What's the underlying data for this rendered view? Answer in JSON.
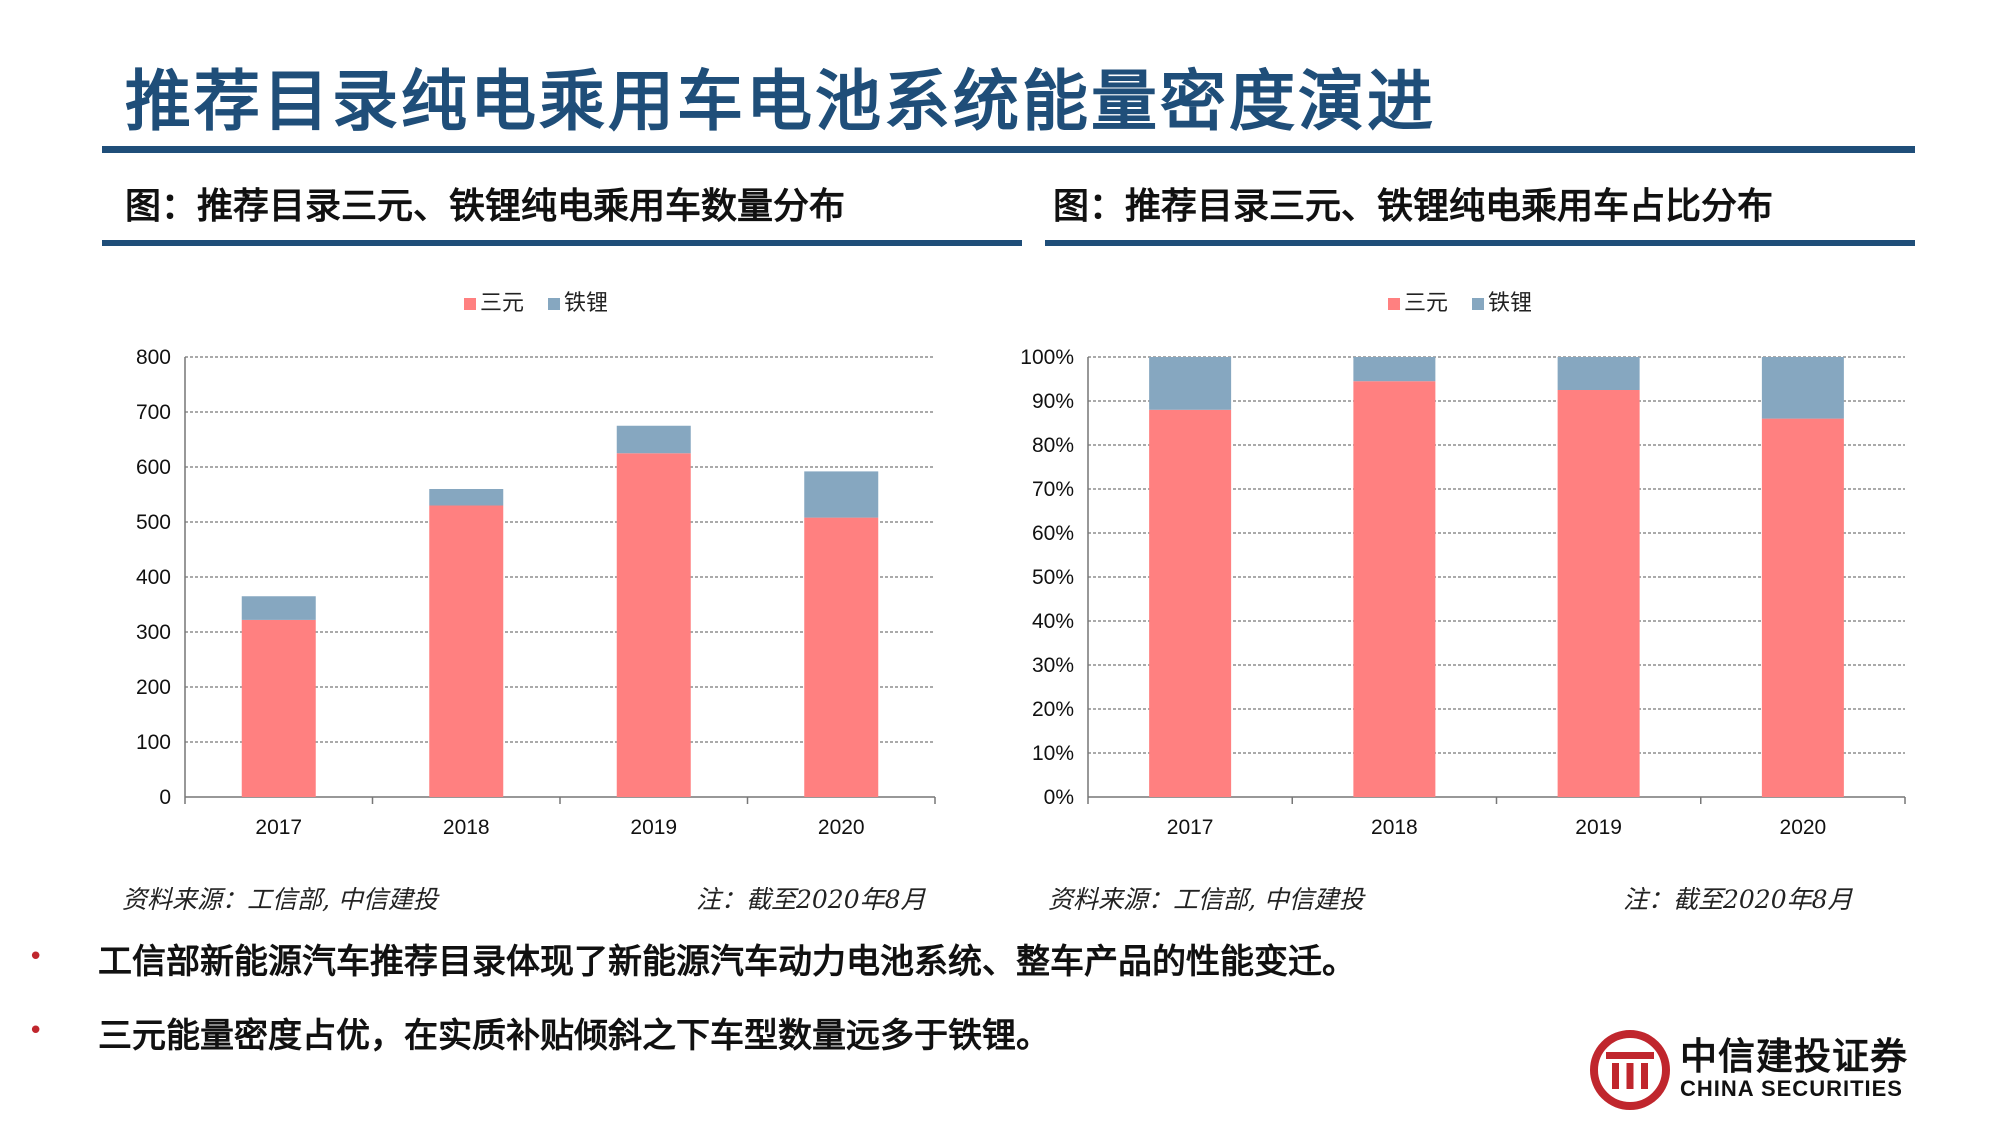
{
  "page": {
    "title": "推荐目录纯电乘用车电池系统能量密度演进"
  },
  "figures": [
    {
      "title": "图：推荐目录三元、铁锂纯电乘用车数量分布",
      "source": "资料来源：工信部, 中信建投",
      "note": "注：截至2020年8月"
    },
    {
      "title": "图：推荐目录三元、铁锂纯电乘用车占比分布",
      "source": "资料来源：工信部, 中信建投",
      "note": "注：截至2020年8月"
    }
  ],
  "chart_data": [
    {
      "type": "bar",
      "stacked": true,
      "categories": [
        "2017",
        "2018",
        "2019",
        "2020"
      ],
      "series": [
        {
          "name": "三元",
          "values": [
            322,
            530,
            625,
            508
          ],
          "color": "#ff8080"
        },
        {
          "name": "铁锂",
          "values": [
            43,
            30,
            50,
            84
          ],
          "color": "#86a7c0"
        }
      ],
      "ylim": [
        0,
        800
      ],
      "yticks": [
        "0",
        "100",
        "200",
        "300",
        "400",
        "500",
        "600",
        "700",
        "800"
      ],
      "grid": true,
      "legend": "top-center"
    },
    {
      "type": "bar",
      "stacked": true,
      "percent": true,
      "categories": [
        "2017",
        "2018",
        "2019",
        "2020"
      ],
      "series": [
        {
          "name": "三元",
          "values": [
            88,
            94.5,
            92.5,
            86
          ],
          "color": "#ff8080"
        },
        {
          "name": "铁锂",
          "values": [
            12,
            5.5,
            7.5,
            14
          ],
          "color": "#86a7c0"
        }
      ],
      "ylim": [
        0,
        100
      ],
      "yticks": [
        "0%",
        "10%",
        "20%",
        "30%",
        "40%",
        "50%",
        "60%",
        "70%",
        "80%",
        "90%",
        "100%"
      ],
      "grid": true,
      "legend": "top-center"
    }
  ],
  "bullets": [
    "工信部新能源汽车推荐目录体现了新能源汽车动力电池系统、整车产品的性能变迁。",
    "三元能量密度占优，在实质补贴倾斜之下车型数量远多于铁锂。"
  ],
  "bullet_symbol": "•",
  "logo": {
    "name_cn": "中信建投证券",
    "name_en": "CHINA SECURITIES",
    "color": "#c0262d"
  }
}
